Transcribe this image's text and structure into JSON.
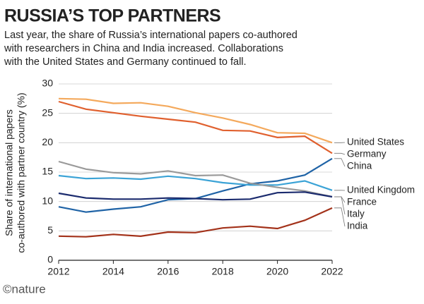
{
  "chart_data": {
    "type": "line",
    "title": "RUSSIA’S TOP PARTNERS",
    "subtitle": [
      "Last year, the share of Russia’s international papers co-authored",
      "with researchers in China and India increased. Collaborations",
      "with the United States and Germany continued to fall."
    ],
    "y_label": [
      "Share of international papers",
      "co-authored with partner country (%)"
    ],
    "source": "©nature",
    "x": [
      2012,
      2013,
      2014,
      2015,
      2016,
      2017,
      2018,
      2019,
      2020,
      2021,
      2022
    ],
    "xlim": [
      2012,
      2022
    ],
    "xticks": [
      2012,
      2014,
      2016,
      2018,
      2020,
      2022
    ],
    "ylim": [
      0,
      30
    ],
    "yticks": [
      0,
      5,
      10,
      15,
      20,
      25,
      30
    ],
    "grid": true,
    "series": [
      {
        "name": "United States",
        "color": "#f4a95c",
        "values": [
          27.5,
          27.4,
          26.7,
          26.8,
          26.2,
          25.1,
          24.2,
          23.1,
          21.7,
          21.6,
          20.0
        ]
      },
      {
        "name": "Germany",
        "color": "#e0602e",
        "values": [
          27.0,
          25.7,
          25.1,
          24.5,
          24.0,
          23.5,
          22.1,
          22.0,
          20.9,
          21.1,
          18.2
        ]
      },
      {
        "name": "China",
        "color": "#1f63a6",
        "values": [
          9.1,
          8.2,
          8.7,
          9.1,
          10.3,
          10.5,
          11.8,
          13.0,
          13.5,
          14.5,
          17.3
        ]
      },
      {
        "name": "United Kingdom",
        "color": "#3ba3d6",
        "values": [
          14.4,
          13.9,
          14.0,
          13.8,
          14.3,
          13.9,
          13.2,
          12.8,
          12.8,
          13.5,
          11.9
        ]
      },
      {
        "name": "France",
        "color": "#9a9a9a",
        "values": [
          16.8,
          15.5,
          14.9,
          14.7,
          15.2,
          14.4,
          14.5,
          13.1,
          12.4,
          11.8,
          10.8
        ]
      },
      {
        "name": "Italy",
        "color": "#1b2b6e",
        "values": [
          11.4,
          10.6,
          10.4,
          10.4,
          10.6,
          10.5,
          10.3,
          10.4,
          11.5,
          11.6,
          10.8
        ]
      },
      {
        "name": "India",
        "color": "#a3321a",
        "values": [
          4.1,
          4.0,
          4.4,
          4.1,
          4.8,
          4.7,
          5.5,
          5.8,
          5.4,
          6.8,
          8.9
        ]
      }
    ]
  }
}
